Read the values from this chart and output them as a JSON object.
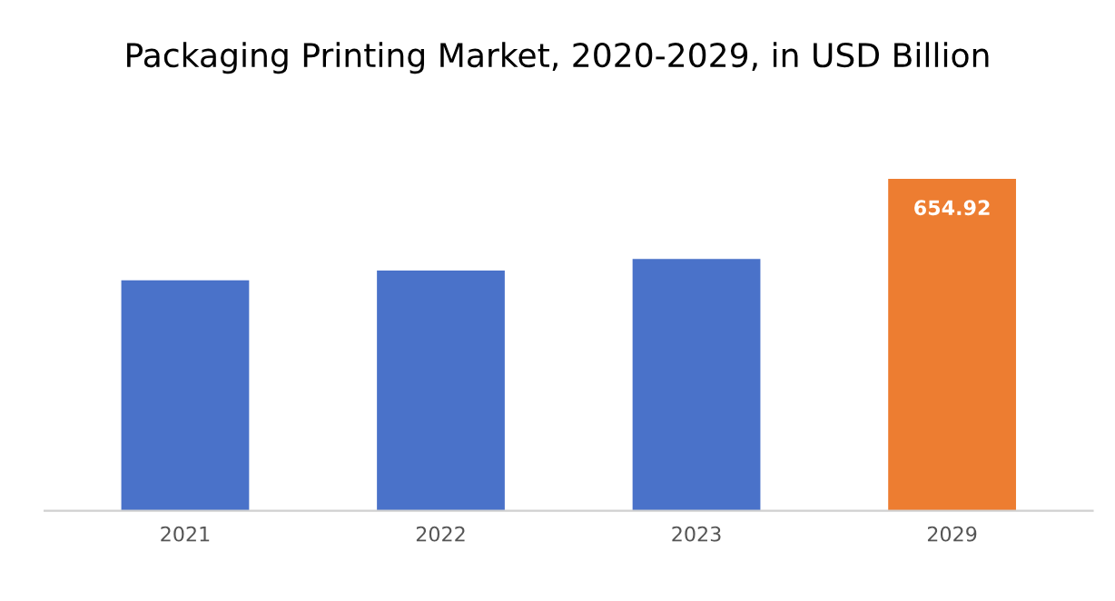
{
  "chart_data": {
    "type": "bar",
    "title": "Packaging Printing Market, 2020-2029, in USD Billion",
    "categories": [
      "2021",
      "2022",
      "2023",
      "2029"
    ],
    "values": [
      455,
      474,
      497,
      654.92
    ],
    "colors": [
      "#4a72c9",
      "#4a72c9",
      "#4a72c9",
      "#ed7d31"
    ],
    "value_labels": [
      null,
      null,
      null,
      "654.92"
    ],
    "grid": false,
    "legend": false
  }
}
